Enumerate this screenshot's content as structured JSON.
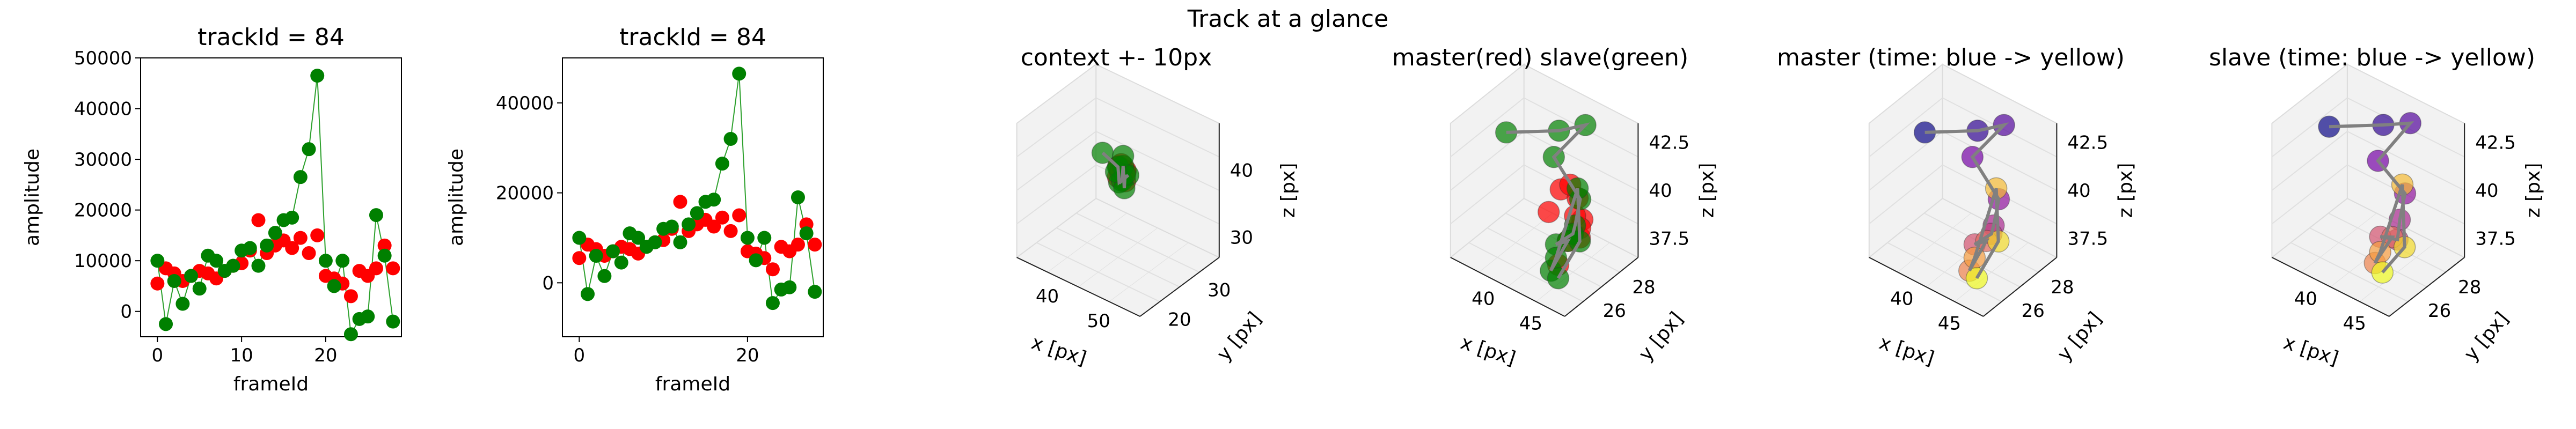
{
  "figure_title": "Track at a glance",
  "colors": {
    "red": "#ff0000",
    "green": "#008000",
    "line_green": "#2ca02c",
    "track_gray": "#808080",
    "pane_face": "#f2f2f2",
    "pane_edge": "#dcdcdc"
  },
  "chart_data": [
    {
      "type": "line",
      "title": "trackId = 84",
      "xlabel": "frameId",
      "ylabel": "amplitude",
      "xlim": [
        -2,
        29
      ],
      "ylim": [
        -5000,
        50000
      ],
      "xticks": [
        0,
        10,
        20
      ],
      "yticks": [
        0,
        10000,
        20000,
        30000,
        40000,
        50000
      ],
      "series": [
        {
          "color": "red",
          "x": [
            0,
            1,
            2,
            3,
            4,
            5,
            6,
            7,
            8,
            9,
            10,
            11,
            12,
            13,
            14,
            15,
            16,
            17,
            18,
            19,
            20,
            21,
            22,
            23,
            24,
            25,
            26,
            27,
            28
          ],
          "y": [
            5500,
            8500,
            7500,
            6000,
            7000,
            8000,
            7500,
            6500,
            8000,
            9000,
            9500,
            12000,
            18000,
            11500,
            13000,
            14000,
            12500,
            14500,
            11500,
            15000,
            7000,
            6500,
            5500,
            3000,
            8000,
            7000,
            8500,
            13000,
            8500
          ]
        },
        {
          "color": "green",
          "connected": true,
          "x": [
            0,
            1,
            2,
            3,
            4,
            5,
            6,
            7,
            8,
            9,
            10,
            11,
            12,
            13,
            14,
            15,
            16,
            17,
            18,
            19,
            20,
            21,
            22,
            23,
            24,
            25,
            26,
            27,
            28
          ],
          "y": [
            10000,
            -2500,
            6000,
            1500,
            7000,
            4500,
            11000,
            10000,
            8000,
            9000,
            12000,
            12500,
            9000,
            13000,
            15500,
            18000,
            18500,
            26500,
            32000,
            46500,
            10000,
            5000,
            10000,
            -4500,
            -1500,
            -1000,
            19000,
            11000,
            -2000
          ]
        }
      ]
    },
    {
      "type": "line",
      "title": "trackId = 84",
      "xlabel": "frameId",
      "ylabel": "amplitude",
      "xlim": [
        -2,
        29
      ],
      "ylim": [
        -12000,
        50000
      ],
      "xticks": [
        0,
        20
      ],
      "yticks": [
        0,
        20000,
        40000
      ],
      "series": [
        {
          "color": "red",
          "x": [
            0,
            1,
            2,
            3,
            4,
            5,
            6,
            7,
            8,
            9,
            10,
            11,
            12,
            13,
            14,
            15,
            16,
            17,
            18,
            19,
            20,
            21,
            22,
            23,
            24,
            25,
            26,
            27,
            28
          ],
          "y": [
            5500,
            8500,
            7500,
            6000,
            7000,
            8000,
            7500,
            6500,
            8000,
            9000,
            9500,
            12000,
            18000,
            11500,
            13000,
            14000,
            12500,
            14500,
            11500,
            15000,
            7000,
            6500,
            5500,
            3000,
            8000,
            7000,
            8500,
            13000,
            8500
          ]
        },
        {
          "color": "green",
          "connected": true,
          "x": [
            0,
            1,
            2,
            3,
            4,
            5,
            6,
            7,
            8,
            9,
            10,
            11,
            12,
            13,
            14,
            15,
            16,
            17,
            18,
            19,
            20,
            21,
            22,
            23,
            24,
            25,
            26,
            27,
            28
          ],
          "y": [
            10000,
            -2500,
            6000,
            1500,
            7000,
            4500,
            11000,
            10000,
            8000,
            9000,
            12000,
            12500,
            9000,
            13000,
            15500,
            18000,
            18500,
            26500,
            32000,
            46500,
            10000,
            5000,
            10000,
            -4500,
            -1500,
            -1000,
            19000,
            11000,
            -2000
          ]
        }
      ]
    },
    {
      "type": "scatter",
      "title": "context +- 10px",
      "xlabel": "x [px]",
      "ylabel": "y [px]",
      "zlabel": "z [px]",
      "xticks": [
        40,
        50
      ],
      "yticks": [
        20,
        30
      ],
      "zticks": [
        30,
        40
      ],
      "xlim": [
        33,
        57
      ],
      "ylim": [
        17,
        37
      ],
      "zlim": [
        27,
        47
      ],
      "series": [
        {
          "color": "red",
          "x": [
            45,
            46,
            45.5,
            46.5,
            45,
            46,
            45.5,
            46
          ],
          "y": [
            27,
            27.5,
            26.5,
            27,
            27.5,
            26.5,
            27,
            27.5
          ],
          "z": [
            39,
            40,
            41,
            40.5,
            39.5,
            41.5,
            40,
            38.5
          ]
        },
        {
          "color": "green",
          "x": [
            42,
            45,
            46,
            47,
            45,
            46,
            47,
            46,
            45,
            46
          ],
          "y": [
            27,
            27,
            26,
            27,
            28,
            27,
            26,
            27.5,
            26.5,
            27
          ],
          "z": [
            41.5,
            40.5,
            39,
            40,
            38,
            41,
            38.5,
            39.5,
            40,
            42.5
          ]
        },
        {
          "color": "track_gray",
          "line": true,
          "x": [
            42,
            45,
            46,
            47,
            45,
            46,
            47,
            46
          ],
          "y": [
            27,
            27,
            26,
            27,
            28,
            27,
            26,
            27.5
          ],
          "z": [
            41.5,
            40.5,
            39,
            40,
            38,
            41,
            38.5,
            39.5
          ]
        }
      ]
    },
    {
      "type": "scatter",
      "title": "master(red) slave(green)",
      "xlabel": "x [px]",
      "ylabel": "y [px]",
      "zlabel": "z [px]",
      "xticks": [
        40,
        45
      ],
      "yticks": [
        26,
        28
      ],
      "zticks": [
        37.5,
        40.0,
        42.5
      ],
      "xlim": [
        36,
        48
      ],
      "ylim": [
        24.5,
        29.5
      ],
      "zlim": [
        36.5,
        43.5
      ],
      "series": [
        {
          "color": "red",
          "x": [
            44.5,
            45.5,
            46,
            44,
            46.5,
            45,
            45.5,
            44.5,
            46,
            45
          ],
          "y": [
            26.5,
            27,
            27,
            26,
            26.5,
            27.5,
            26.5,
            27,
            26.5,
            26
          ],
          "z": [
            41,
            40.5,
            39.5,
            40,
            39,
            38.5,
            41.5,
            38,
            40,
            37.5
          ]
        },
        {
          "color": "green",
          "x": [
            38,
            42,
            44,
            43,
            45,
            46,
            45,
            44,
            46,
            45,
            44,
            45.5,
            46.5,
            45
          ],
          "y": [
            27,
            28,
            28.5,
            27,
            27.5,
            26.5,
            27,
            26.5,
            26,
            25.5,
            26.5,
            27,
            26.5,
            26
          ],
          "z": [
            42,
            42.5,
            43,
            42,
            40,
            39.5,
            38.5,
            38,
            39,
            37.5,
            37.3,
            41,
            38.8,
            36.8
          ]
        },
        {
          "color": "track_gray",
          "line": true,
          "x": [
            38,
            42,
            44,
            43,
            45,
            46,
            45,
            44,
            46,
            45,
            44,
            45.5,
            46.5,
            45
          ],
          "y": [
            27,
            28,
            28.5,
            27,
            27.5,
            26.5,
            27,
            26.5,
            26,
            25.5,
            26.5,
            27,
            26.5,
            26
          ],
          "z": [
            42,
            42.5,
            43,
            42,
            40,
            39.5,
            38.5,
            38,
            39,
            37.5,
            37.3,
            41,
            38.8,
            36.8
          ]
        }
      ]
    },
    {
      "type": "scatter",
      "title": "master (time: blue -> yellow)",
      "xlabel": "x [px]",
      "ylabel": "y [px]",
      "zlabel": "z [px]",
      "xticks": [
        40,
        45
      ],
      "yticks": [
        26,
        28
      ],
      "zticks": [
        37.5,
        40.0,
        42.5
      ],
      "xlim": [
        36,
        48
      ],
      "ylim": [
        24.5,
        29.5
      ],
      "zlim": [
        36.5,
        43.5
      ],
      "colormap": "plasma",
      "series": [
        {
          "color": "time",
          "x": [
            38,
            42,
            44,
            43,
            45,
            46,
            45,
            44,
            46,
            45,
            44,
            45.5,
            46.5,
            45
          ],
          "y": [
            27,
            28,
            28.5,
            27,
            27.5,
            26.5,
            27,
            26.5,
            26,
            25.5,
            26.5,
            27,
            26.5,
            26
          ],
          "z": [
            42,
            42.5,
            43,
            42,
            40,
            39.5,
            38.5,
            38,
            39,
            37.5,
            37.3,
            41,
            38.8,
            36.8
          ]
        }
      ]
    },
    {
      "type": "scatter",
      "title": "slave (time: blue -> yellow)",
      "xlabel": "x [px]",
      "ylabel": "y [px]",
      "zlabel": "z [px]",
      "xticks": [
        40,
        45
      ],
      "yticks": [
        26,
        28
      ],
      "zticks": [
        37.5,
        40.0,
        42.5
      ],
      "xlim": [
        36,
        48
      ],
      "ylim": [
        24.5,
        29.5
      ],
      "zlim": [
        36.5,
        43.5
      ],
      "colormap": "plasma",
      "series": [
        {
          "color": "time",
          "x": [
            38,
            42,
            44,
            43,
            45,
            46,
            45,
            44,
            46,
            45,
            44,
            45.5,
            46.5,
            45
          ],
          "y": [
            27,
            28,
            28.5,
            27,
            27.5,
            26.5,
            27,
            26.5,
            26,
            25.5,
            26.5,
            27,
            26.5,
            26
          ],
          "z": [
            42.3,
            42.8,
            43.1,
            41.8,
            40.3,
            39.8,
            38.2,
            38.4,
            39.2,
            37.9,
            37.6,
            41.2,
            38.5,
            37.1
          ]
        }
      ]
    }
  ]
}
